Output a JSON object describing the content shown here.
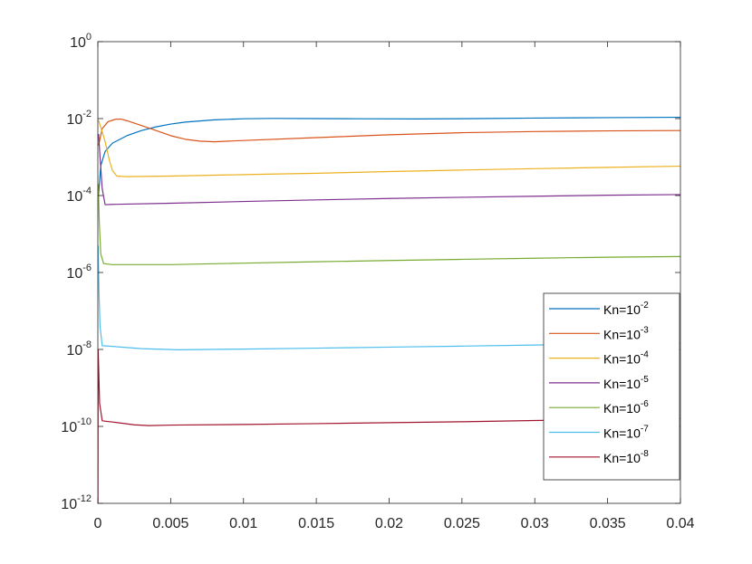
{
  "chart_data": {
    "type": "line",
    "title": "",
    "xlabel": "",
    "ylabel": "",
    "xlim": [
      0,
      0.04
    ],
    "ylim": [
      1e-12,
      1
    ],
    "yscale": "log",
    "grid": false,
    "legend_position": "bottom-right",
    "x_ticks": [
      {
        "value": 0,
        "label": "0"
      },
      {
        "value": 0.005,
        "label": "0.005"
      },
      {
        "value": 0.01,
        "label": "0.01"
      },
      {
        "value": 0.015,
        "label": "0.015"
      },
      {
        "value": 0.02,
        "label": "0.02"
      },
      {
        "value": 0.025,
        "label": "0.025"
      },
      {
        "value": 0.03,
        "label": "0.03"
      },
      {
        "value": 0.035,
        "label": "0.035"
      },
      {
        "value": 0.04,
        "label": "0.04"
      }
    ],
    "y_ticks": [
      {
        "value": 1e-12,
        "base": "10",
        "exp": "-12"
      },
      {
        "value": 1e-10,
        "base": "10",
        "exp": "-10"
      },
      {
        "value": 1e-08,
        "base": "10",
        "exp": "-8"
      },
      {
        "value": 1e-06,
        "base": "10",
        "exp": "-6"
      },
      {
        "value": 0.0001,
        "base": "10",
        "exp": "-4"
      },
      {
        "value": 0.01,
        "base": "10",
        "exp": "-2"
      },
      {
        "value": 1,
        "base": "10",
        "exp": "0"
      }
    ],
    "series": [
      {
        "name": "Kn=10^-2",
        "legend_base": "Kn=10",
        "legend_exp": "-2",
        "color": "#0072BD",
        "points": [
          [
            5e-05,
            0.0001
          ],
          [
            0.0002,
            0.0006
          ],
          [
            0.0005,
            0.0014
          ],
          [
            0.001,
            0.0023
          ],
          [
            0.002,
            0.0036
          ],
          [
            0.003,
            0.0049
          ],
          [
            0.004,
            0.0061
          ],
          [
            0.005,
            0.0072
          ],
          [
            0.006,
            0.0081
          ],
          [
            0.008,
            0.0093
          ],
          [
            0.01,
            0.0099
          ],
          [
            0.012,
            0.0101
          ],
          [
            0.015,
            0.01
          ],
          [
            0.018,
            0.0099
          ],
          [
            0.022,
            0.0098
          ],
          [
            0.026,
            0.01
          ],
          [
            0.03,
            0.0103
          ],
          [
            0.035,
            0.0106
          ],
          [
            0.04,
            0.0108
          ]
        ]
      },
      {
        "name": "Kn=10^-3",
        "legend_base": "Kn=10",
        "legend_exp": "-3",
        "color": "#D95319",
        "points": [
          [
            5e-05,
            0.002
          ],
          [
            0.0003,
            0.0055
          ],
          [
            0.0007,
            0.0083
          ],
          [
            0.0012,
            0.0096
          ],
          [
            0.0016,
            0.0097
          ],
          [
            0.002,
            0.0088
          ],
          [
            0.003,
            0.0066
          ],
          [
            0.004,
            0.0049
          ],
          [
            0.005,
            0.0036
          ],
          [
            0.006,
            0.0029
          ],
          [
            0.007,
            0.0026
          ],
          [
            0.008,
            0.0025
          ],
          [
            0.01,
            0.0027
          ],
          [
            0.015,
            0.0032
          ],
          [
            0.02,
            0.0038
          ],
          [
            0.025,
            0.0043
          ],
          [
            0.03,
            0.0046
          ],
          [
            0.035,
            0.0048
          ],
          [
            0.04,
            0.0049
          ]
        ]
      },
      {
        "name": "Kn=10^-4",
        "legend_base": "Kn=10",
        "legend_exp": "-4",
        "color": "#EDB120",
        "points": [
          [
            5e-05,
            0.009
          ],
          [
            0.0002,
            0.006
          ],
          [
            0.0005,
            0.0025
          ],
          [
            0.0008,
            0.0008
          ],
          [
            0.001,
            0.00045
          ],
          [
            0.0013,
            0.00032
          ],
          [
            0.002,
            0.00031
          ],
          [
            0.005,
            0.00032
          ],
          [
            0.01,
            0.00035
          ],
          [
            0.015,
            0.00038
          ],
          [
            0.02,
            0.00042
          ],
          [
            0.025,
            0.00046
          ],
          [
            0.03,
            0.0005
          ],
          [
            0.035,
            0.00054
          ],
          [
            0.04,
            0.00058
          ]
        ]
      },
      {
        "name": "Kn=10^-5",
        "legend_base": "Kn=10",
        "legend_exp": "-5",
        "color": "#7E2F8E",
        "points": [
          [
            5e-05,
            0.004
          ],
          [
            0.00015,
            0.001
          ],
          [
            0.0003,
            0.00015
          ],
          [
            0.0005,
            5.8e-05
          ],
          [
            0.001,
            5.9e-05
          ],
          [
            0.005,
            6.3e-05
          ],
          [
            0.01,
            7e-05
          ],
          [
            0.015,
            7.7e-05
          ],
          [
            0.02,
            8.4e-05
          ],
          [
            0.025,
            9e-05
          ],
          [
            0.03,
            9.6e-05
          ],
          [
            0.035,
            0.000102
          ],
          [
            0.04,
            0.000106
          ]
        ]
      },
      {
        "name": "Kn=10^-6",
        "legend_base": "Kn=10",
        "legend_exp": "-6",
        "color": "#77AC30",
        "points": [
          [
            3e-05,
            0.0002
          ],
          [
            0.0001,
            2e-05
          ],
          [
            0.0002,
            3e-06
          ],
          [
            0.0004,
            1.7e-06
          ],
          [
            0.001,
            1.6e-06
          ],
          [
            0.005,
            1.6e-06
          ],
          [
            0.01,
            1.75e-06
          ],
          [
            0.015,
            1.9e-06
          ],
          [
            0.02,
            2.05e-06
          ],
          [
            0.025,
            2.2e-06
          ],
          [
            0.03,
            2.35e-06
          ],
          [
            0.035,
            2.5e-06
          ],
          [
            0.04,
            2.6e-06
          ]
        ]
      },
      {
        "name": "Kn=10^-7",
        "legend_base": "Kn=10",
        "legend_exp": "-7",
        "color": "#4DBEEE",
        "points": [
          [
            2e-05,
            5e-06
          ],
          [
            8e-05,
            3e-07
          ],
          [
            0.00015,
            4e-08
          ],
          [
            0.0003,
            1.25e-08
          ],
          [
            0.001,
            1.2e-08
          ],
          [
            0.003,
            1.05e-08
          ],
          [
            0.0055,
            9.8e-09
          ],
          [
            0.01,
            1.02e-08
          ],
          [
            0.015,
            1.08e-08
          ],
          [
            0.02,
            1.15e-08
          ],
          [
            0.025,
            1.22e-08
          ],
          [
            0.03,
            1.3e-08
          ],
          [
            0.035,
            1.38e-08
          ],
          [
            0.04,
            1.45e-08
          ]
        ]
      },
      {
        "name": "Kn=10^-8",
        "legend_base": "Kn=10",
        "legend_exp": "-8",
        "color": "#A2142F",
        "points": [
          [
            5e-06,
            1e-12
          ],
          [
            2e-05,
            1e-08
          ],
          [
            6e-05,
            3e-09
          ],
          [
            0.00012,
            4e-10
          ],
          [
            0.0003,
            1.4e-10
          ],
          [
            0.001,
            1.3e-10
          ],
          [
            0.0025,
            1.1e-10
          ],
          [
            0.0035,
            1.05e-10
          ],
          [
            0.005,
            1.08e-10
          ],
          [
            0.01,
            1.12e-10
          ],
          [
            0.015,
            1.18e-10
          ],
          [
            0.02,
            1.25e-10
          ],
          [
            0.025,
            1.32e-10
          ],
          [
            0.03,
            1.42e-10
          ],
          [
            0.035,
            1.52e-10
          ],
          [
            0.04,
            1.6e-10
          ]
        ]
      }
    ]
  }
}
